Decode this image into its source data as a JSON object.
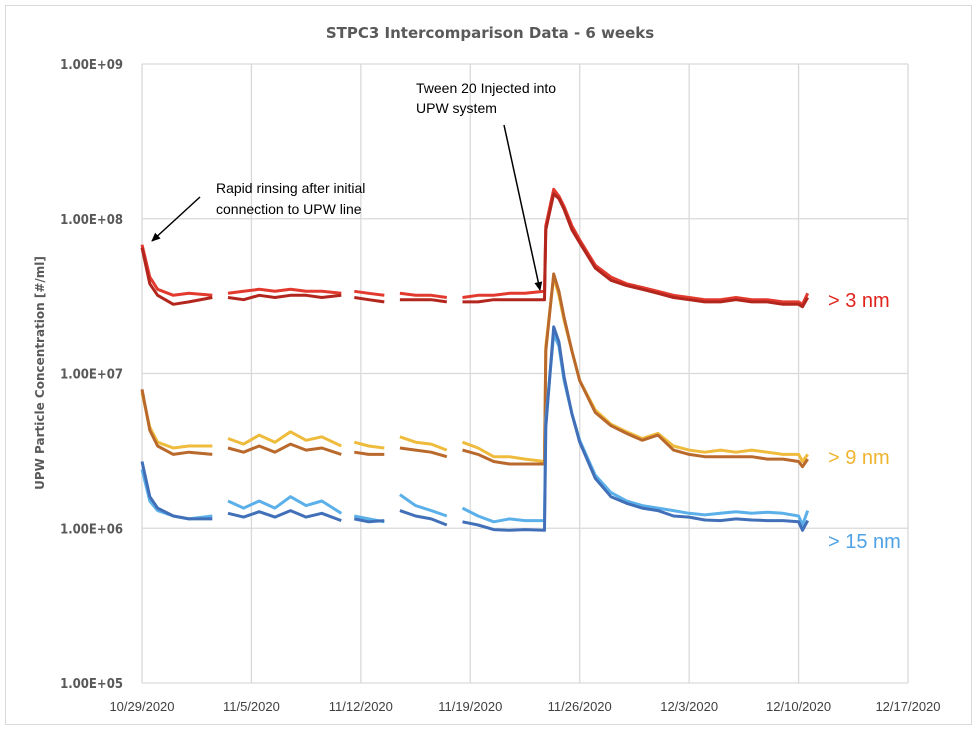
{
  "chart_data": {
    "type": "line",
    "title": "STPC3 Intercomparison Data - 6 weeks",
    "xlabel": "",
    "ylabel": "UPW Particle Concentration [#/ml]",
    "y_scale": "log",
    "ylim": [
      100000,
      1000000000
    ],
    "y_ticks": [
      "1.00E+05",
      "1.00E+06",
      "1.00E+07",
      "1.00E+08",
      "1.00E+09"
    ],
    "y_tick_values": [
      100000,
      1000000,
      10000000,
      100000000,
      1000000000
    ],
    "xlim": [
      "2020-10-29",
      "2020-12-17"
    ],
    "x_ticks": [
      "10/29/2020",
      "11/5/2020",
      "11/12/2020",
      "11/19/2020",
      "11/26/2020",
      "12/3/2020",
      "12/10/2020",
      "12/17/2020"
    ],
    "x_tick_values": [
      "2020-10-29",
      "2020-11-05",
      "2020-11-12",
      "2020-11-19",
      "2020-11-26",
      "2020-12-03",
      "2020-12-10",
      "2020-12-17"
    ],
    "grid": true,
    "legend": "none",
    "x": [
      "2020-10-29T00:00",
      "2020-10-29T12:00",
      "2020-10-30T00:00",
      "2020-10-31T00:00",
      "2020-11-01T00:00",
      "2020-11-02T12:00",
      "2020-11-03T00:00",
      "2020-11-03T12:00",
      "2020-11-04T12:00",
      "2020-11-05T12:00",
      "2020-11-06T12:00",
      "2020-11-07T12:00",
      "2020-11-08T12:00",
      "2020-11-09T12:00",
      "2020-11-10T18:00",
      "2020-11-11T03:00",
      "2020-11-11T14:00",
      "2020-11-12T12:00",
      "2020-11-13T12:00",
      "2020-11-14T00:00",
      "2020-11-14T12:00",
      "2020-11-15T12:00",
      "2020-11-16T12:00",
      "2020-11-17T12:00",
      "2020-11-18T00:00",
      "2020-11-18T12:00",
      "2020-11-19T12:00",
      "2020-11-20T12:00",
      "2020-11-21T12:00",
      "2020-11-22T12:00",
      "2020-11-23T18:00",
      "2020-11-23T20:00",
      "2020-11-24T08:00",
      "2020-11-24T16:00",
      "2020-11-25T00:00",
      "2020-11-25T12:00",
      "2020-11-26T00:00",
      "2020-11-27T00:00",
      "2020-11-28T00:00",
      "2020-11-29T00:00",
      "2020-11-30T00:00",
      "2020-12-01T00:00",
      "2020-12-02T00:00",
      "2020-12-03T00:00",
      "2020-12-04T00:00",
      "2020-12-05T00:00",
      "2020-12-06T00:00",
      "2020-12-07T00:00",
      "2020-12-08T00:00",
      "2020-12-09T00:00",
      "2020-12-10T00:00",
      "2020-12-10T06:00",
      "2020-12-10T14:00"
    ],
    "series": [
      {
        "color": "#e23a2e",
        "values": [
          68000000.0,
          42000000.0,
          35000000.0,
          32000000.0,
          33000000.0,
          32000000.0,
          null,
          33000000.0,
          34000000.0,
          35000000.0,
          34000000.0,
          35000000.0,
          34000000.0,
          34000000.0,
          33000000.0,
          null,
          34000000.0,
          33000000.0,
          32000000.0,
          null,
          33000000.0,
          32000000.0,
          32000000.0,
          31000000.0,
          null,
          31000000.0,
          32000000.0,
          32000000.0,
          33000000.0,
          33000000.0,
          34000000.0,
          90000000.0,
          155000000.0,
          140000000.0,
          120000000.0,
          90000000.0,
          73000000.0,
          50000000.0,
          42000000.0,
          38000000.0,
          36000000.0,
          34000000.0,
          32000000.0,
          31000000.0,
          30000000.0,
          30000000.0,
          31000000.0,
          30000000.0,
          30000000.0,
          29000000.0,
          29000000.0,
          28000000.0,
          33000000.0
        ]
      },
      {
        "color": "#b3261e",
        "values": [
          65000000.0,
          38000000.0,
          32000000.0,
          28000000.0,
          29000000.0,
          31000000.0,
          null,
          31000000.0,
          30000000.0,
          32000000.0,
          31000000.0,
          32000000.0,
          32000000.0,
          31000000.0,
          32000000.0,
          null,
          31000000.0,
          30000000.0,
          29000000.0,
          null,
          30000000.0,
          30000000.0,
          30000000.0,
          29000000.0,
          null,
          29000000.0,
          29000000.0,
          30000000.0,
          30000000.0,
          30000000.0,
          30000000.0,
          85000000.0,
          145000000.0,
          135000000.0,
          115000000.0,
          85000000.0,
          70000000.0,
          48000000.0,
          40000000.0,
          37000000.0,
          35000000.0,
          33000000.0,
          31000000.0,
          30000000.0,
          29000000.0,
          29000000.0,
          30000000.0,
          29000000.0,
          29000000.0,
          28000000.0,
          28000000.0,
          27000000.0,
          31000000.0
        ]
      },
      {
        "color": "#efbb3c",
        "values": [
          7500000.0,
          4500000.0,
          3600000.0,
          3300000.0,
          3400000.0,
          3400000.0,
          null,
          3800000.0,
          3500000.0,
          4000000.0,
          3600000.0,
          4200000.0,
          3700000.0,
          3900000.0,
          3400000.0,
          null,
          3600000.0,
          3400000.0,
          3300000.0,
          null,
          3900000.0,
          3600000.0,
          3500000.0,
          3200000.0,
          null,
          3600000.0,
          3300000.0,
          2900000.0,
          2900000.0,
          2800000.0,
          2700000.0,
          15000000.0,
          42000000.0,
          32000000.0,
          22000000.0,
          14000000.0,
          9000000.0,
          5800000.0,
          4700000.0,
          4200000.0,
          3800000.0,
          4100000.0,
          3400000.0,
          3200000.0,
          3100000.0,
          3200000.0,
          3100000.0,
          3200000.0,
          3100000.0,
          3000000.0,
          3000000.0,
          2700000.0,
          3000000.0
        ]
      },
      {
        "color": "#b9692c",
        "values": [
          7900000.0,
          4300000.0,
          3400000.0,
          3000000.0,
          3100000.0,
          3000000.0,
          null,
          3300000.0,
          3100000.0,
          3400000.0,
          3100000.0,
          3500000.0,
          3200000.0,
          3300000.0,
          3000000.0,
          null,
          3100000.0,
          3000000.0,
          3000000.0,
          null,
          3300000.0,
          3200000.0,
          3100000.0,
          2900000.0,
          null,
          3200000.0,
          3000000.0,
          2700000.0,
          2600000.0,
          2600000.0,
          2600000.0,
          14000000.0,
          44000000.0,
          34000000.0,
          23000000.0,
          14000000.0,
          9000000.0,
          5600000.0,
          4600000.0,
          4100000.0,
          3700000.0,
          4000000.0,
          3200000.0,
          3000000.0,
          2900000.0,
          2900000.0,
          2900000.0,
          2900000.0,
          2800000.0,
          2800000.0,
          2700000.0,
          2500000.0,
          2800000.0
        ]
      },
      {
        "color": "#5cb0ea",
        "values": [
          2400000.0,
          1500000.0,
          1300000.0,
          1200000.0,
          1150000.0,
          1200000.0,
          null,
          1500000.0,
          1350000.0,
          1500000.0,
          1350000.0,
          1600000.0,
          1400000.0,
          1500000.0,
          1250000.0,
          null,
          1200000.0,
          1150000.0,
          1100000.0,
          null,
          1650000.0,
          1400000.0,
          1300000.0,
          1200000.0,
          null,
          1350000.0,
          1200000.0,
          1100000.0,
          1150000.0,
          1120000.0,
          1120000.0,
          5000000.0,
          18000000.0,
          15000000.0,
          9000000.0,
          5500000.0,
          3700000.0,
          2200000.0,
          1700000.0,
          1500000.0,
          1400000.0,
          1350000.0,
          1300000.0,
          1250000.0,
          1220000.0,
          1250000.0,
          1280000.0,
          1250000.0,
          1270000.0,
          1250000.0,
          1200000.0,
          1050000.0,
          1300000.0
        ]
      },
      {
        "color": "#4170b8",
        "values": [
          2700000.0,
          1600000.0,
          1350000.0,
          1200000.0,
          1150000.0,
          1150000.0,
          null,
          1250000.0,
          1180000.0,
          1280000.0,
          1180000.0,
          1300000.0,
          1180000.0,
          1250000.0,
          1120000.0,
          null,
          1150000.0,
          1100000.0,
          1120000.0,
          null,
          1300000.0,
          1200000.0,
          1150000.0,
          1050000.0,
          null,
          1100000.0,
          1050000.0,
          980000.0,
          970000.0,
          980000.0,
          970000.0,
          4500000.0,
          20000000.0,
          16000000.0,
          9500000.0,
          5500000.0,
          3600000.0,
          2100000.0,
          1600000.0,
          1450000.0,
          1350000.0,
          1300000.0,
          1200000.0,
          1180000.0,
          1130000.0,
          1120000.0,
          1150000.0,
          1130000.0,
          1120000.0,
          1120000.0,
          1100000.0,
          970000.0,
          1120000.0
        ]
      }
    ],
    "series_labels": [
      {
        "text": "> 3 nm",
        "color": "#e0231c"
      },
      {
        "text": "> 9 nm",
        "color": "#efb52e"
      },
      {
        "text": "> 15 nm",
        "color": "#4ea2e6"
      }
    ],
    "annotations": [
      {
        "lines": [
          "Rapid rinsing after initial",
          "connection to UPW line"
        ]
      },
      {
        "lines": [
          "Tween 20 Injected into",
          "UPW system"
        ]
      }
    ]
  }
}
